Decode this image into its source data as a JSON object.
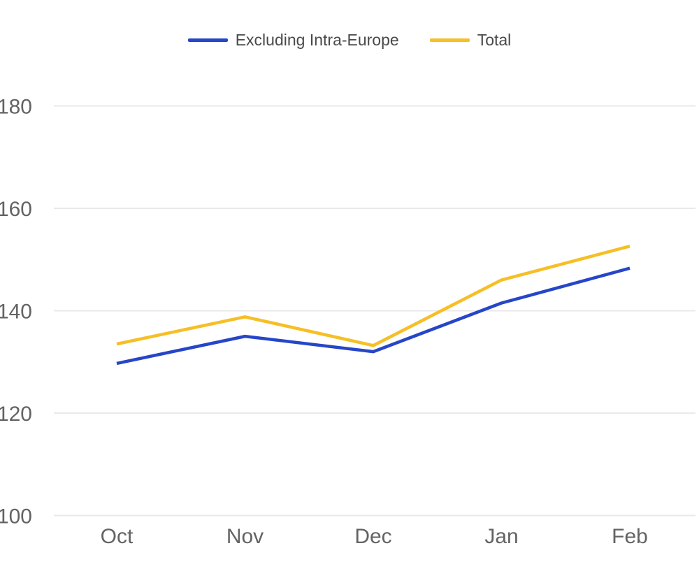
{
  "chart_data": {
    "type": "line",
    "categories": [
      "Oct",
      "Nov",
      "Dec",
      "Jan",
      "Feb"
    ],
    "series": [
      {
        "name": "Excluding Intra-Europe",
        "color": "#2646c8",
        "values": [
          129.7,
          135.0,
          132.0,
          141.5,
          148.3
        ]
      },
      {
        "name": "Total",
        "color": "#f6bf26",
        "values": [
          133.5,
          138.8,
          133.2,
          146.0,
          152.6
        ]
      }
    ],
    "title": "",
    "xlabel": "",
    "ylabel": "",
    "yticks": [
      100,
      120,
      140,
      160,
      180
    ],
    "ylim": [
      100,
      185
    ],
    "grid": true,
    "legend_position": "top",
    "colors": {
      "gridline": "#e9e9e9",
      "axis_text": "#636363",
      "legend_text": "#4a4a4a",
      "background": "#ffffff"
    }
  }
}
